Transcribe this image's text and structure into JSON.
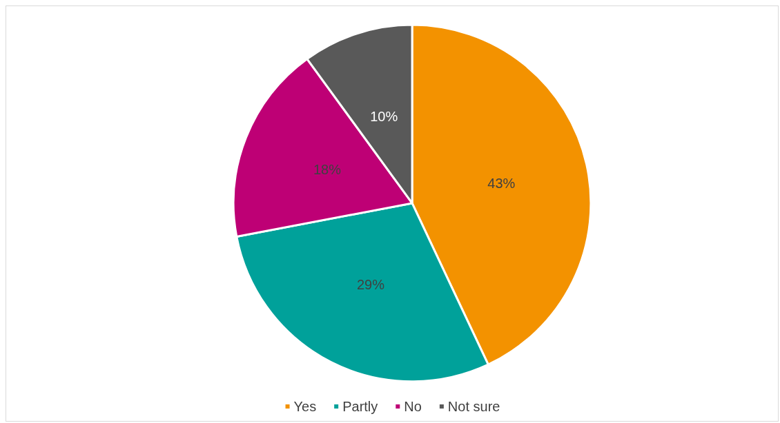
{
  "chart_data": {
    "type": "pie",
    "categories": [
      "Yes",
      "Partly",
      "No",
      "Not sure"
    ],
    "values": [
      43,
      29,
      18,
      10
    ],
    "colors": [
      "#f39200",
      "#00a19a",
      "#be0075",
      "#595959"
    ],
    "value_labels": [
      "43%",
      "29%",
      "18%",
      "10%"
    ],
    "legend": "bottom"
  }
}
